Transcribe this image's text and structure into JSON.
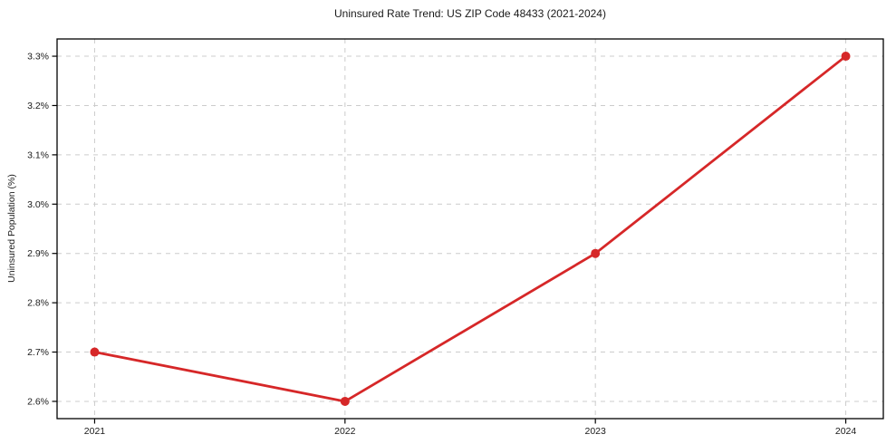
{
  "chart_data": {
    "type": "line",
    "title": "Uninsured Rate Trend: US ZIP Code 48433 (2021-2024)",
    "xlabel": "",
    "ylabel": "Uninsured Population (%)",
    "categories": [
      "2021",
      "2022",
      "2023",
      "2024"
    ],
    "values": [
      2.7,
      2.6,
      2.9,
      3.3
    ],
    "yticks": [
      2.6,
      2.7,
      2.8,
      2.9,
      3.0,
      3.1,
      3.2,
      3.3
    ],
    "ytick_suffix": "%",
    "ylim": [
      2.565,
      3.335
    ],
    "x_margin": 0.05,
    "grid": true,
    "legend": false,
    "line_color": "#d62728",
    "marker_color": "#d62728",
    "grid_color": "#cccccc",
    "axis_color": "#000000",
    "text_color": "#1a1a1a"
  }
}
